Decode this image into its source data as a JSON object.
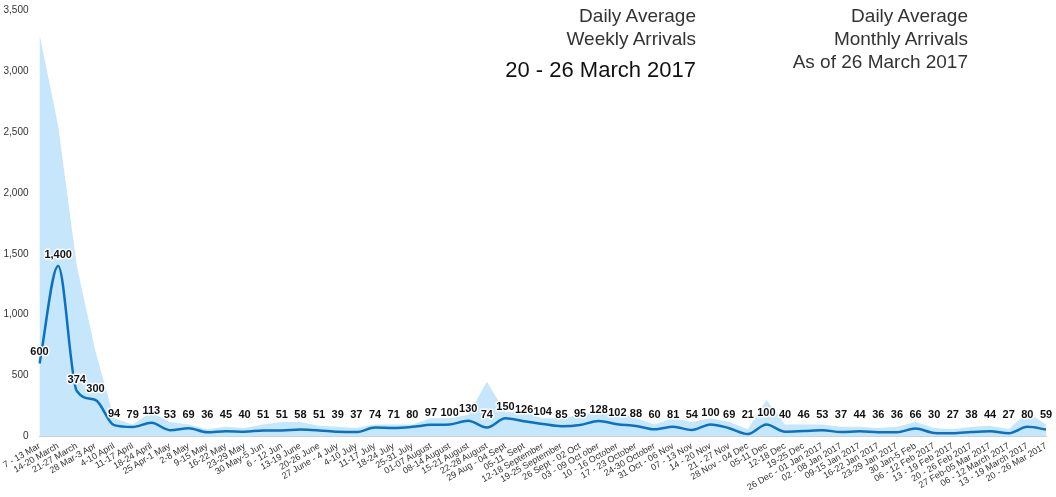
{
  "chart_data": {
    "type": "line",
    "annotations": [
      "Daily Average\nWeekly Arrivals",
      "20 - 26 March 2017",
      "Daily Average\nMonthly Arrivals\nAs of 26 March 2017"
    ],
    "categories": [
      "7 - 13 Mar",
      "14-20 March",
      "21-27 March",
      "28 Mar-3 Apr",
      "4-10 April",
      "11-17 April",
      "18-24 April",
      "25 Apr-1 May",
      "2-8 May",
      "9-15 May",
      "16-22 May",
      "23-29 May",
      "30 May-5 Jun",
      "6 - 12 Jun",
      "13-19 June",
      "20-26 June",
      "27 June - 4 July",
      "4-10 July",
      "11-17 July",
      "18-24 July",
      "25-31 July",
      "01-07 August",
      "08-14 August",
      "15-21 August",
      "22-28 August",
      "29 Aug - 04 Sept",
      "05-11  Sept",
      "12-18 September",
      "19-25 September",
      "26 Sept - 02 Oct",
      "03 - 09 Oct ober",
      "10 - 16 October",
      "17 - 23 October",
      "24-30 October",
      "31 Oct - 06 Nov",
      "07 - 13 Nov",
      "14 - 20 Nov",
      "21 - 27 Nov",
      "28 Nov - 04 Dec",
      "05-11 Dec",
      "12-18 Dec",
      "19-25 Dec",
      "26 Dec - 01 Jan 2017",
      "02 - 08 Jan 2017",
      "09-15 Jan 2017",
      "16-22 Jan 2017",
      "23-29 Jan 2017",
      "30 Jan-5 Feb",
      "06 - 12 Feb 2017",
      "13 - 19 Feb 2017",
      "20 - 26 Feb 2017",
      "27 Feb-05 Mar 2017",
      "06 - 12 March 2017",
      "13 - 19 March 2017",
      "20 - 26 Mar 2017"
    ],
    "series": [
      {
        "type": "area",
        "color": "#c6e6fb",
        "values": [
          3300,
          2550,
          1400,
          700,
          150,
          100,
          200,
          120,
          100,
          60,
          80,
          70,
          100,
          120,
          120,
          90,
          80,
          70,
          100,
          100,
          100,
          150,
          150,
          180,
          450,
          200,
          200,
          150,
          150,
          180,
          200,
          200,
          150,
          100,
          150,
          120,
          150,
          120,
          60,
          300,
          100,
          100,
          100,
          80,
          80,
          70,
          80,
          120,
          70,
          60,
          80,
          90,
          60,
          200,
          100
        ]
      },
      {
        "type": "line",
        "color": "#0a72c2",
        "values": [
          600,
          1400,
          374,
          300,
          94,
          79,
          113,
          53,
          69,
          36,
          45,
          40,
          51,
          51,
          58,
          51,
          39,
          37,
          74,
          71,
          80,
          97,
          100,
          130,
          74,
          150,
          126,
          104,
          85,
          95,
          128,
          102,
          88,
          60,
          81,
          54,
          100,
          69,
          21,
          100,
          40,
          46,
          53,
          37,
          44,
          36,
          36,
          66,
          30,
          27,
          38,
          44,
          27,
          80,
          59
        ],
        "value_labels": [
          "600",
          "1,400",
          "374",
          "300",
          "94",
          "79",
          "113",
          "53",
          "69",
          "36",
          "45",
          "40",
          "51",
          "51",
          "58",
          "51",
          "39",
          "37",
          "74",
          "71",
          "80",
          "97",
          "100",
          "130",
          "74",
          "150",
          "126",
          "104",
          "85",
          "95",
          "128",
          "102",
          "88",
          "60",
          "81",
          "54",
          "100",
          "69",
          "21",
          "100",
          "40",
          "46",
          "53",
          "37",
          "44",
          "36",
          "36",
          "66",
          "30",
          "27",
          "38",
          "44",
          "27",
          "80",
          "59"
        ]
      }
    ],
    "ylim": [
      0,
      3500
    ],
    "yticks": [
      0,
      500,
      {
        "value": 1000,
        "label": "1,000"
      },
      {
        "value": 1500,
        "label": "1,500"
      },
      {
        "value": 2000,
        "label": "2,000"
      },
      {
        "value": 2500,
        "label": "2,500"
      },
      {
        "value": 3000,
        "label": "3,000"
      },
      {
        "value": 3500,
        "label": "3,500"
      }
    ],
    "grid": false,
    "legend": false,
    "marker": "none",
    "line_style": "solid"
  }
}
